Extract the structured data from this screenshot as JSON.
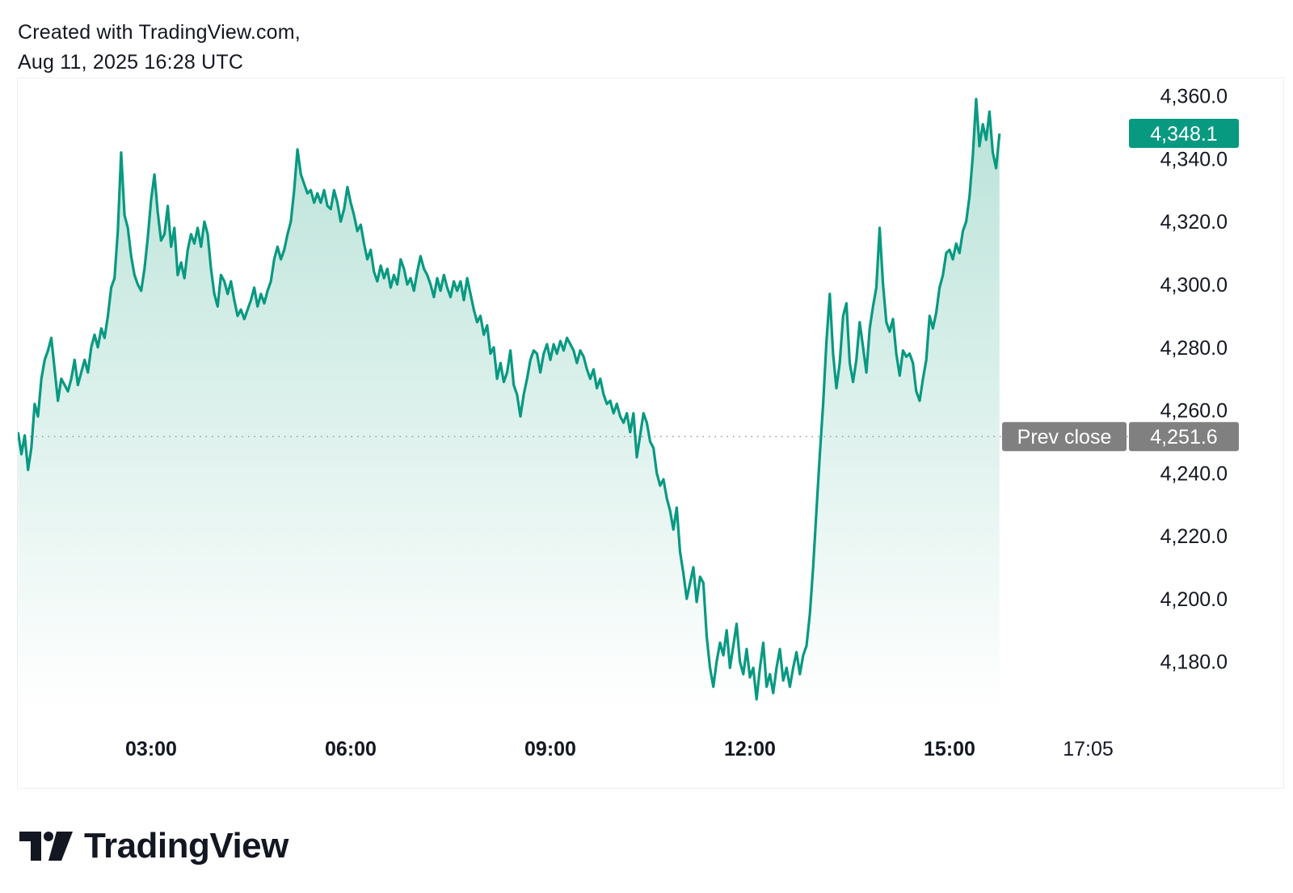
{
  "header": {
    "line1": "Created with TradingView.com,",
    "line2": "Aug 11, 2025 16:28 UTC"
  },
  "footer": {
    "brand": "TradingView"
  },
  "colors": {
    "line": "#089981",
    "area_top": "#b9e2d8",
    "area_bottom": "#ffffff",
    "prev_close_label": "#808080",
    "last_price_label": "#089981",
    "dotted_line": "#9598a1"
  },
  "chart_data": {
    "type": "area",
    "title": "",
    "xlabel": "",
    "ylabel": "",
    "ylim": [
      4165,
      4363
    ],
    "y_ticks": [
      4360,
      4340,
      4320,
      4300,
      4280,
      4260,
      4240,
      4220,
      4200,
      4180
    ],
    "y_tick_labels": [
      "4,360.0",
      "4,340.0",
      "4,320.0",
      "4,300.0",
      "4,280.0",
      "4,260.0",
      "4,240.0",
      "4,220.0",
      "4,200.0",
      "4,180.0"
    ],
    "x_ticks": [
      {
        "label": "03:00",
        "bold": true,
        "hour": 3.0
      },
      {
        "label": "06:00",
        "bold": true,
        "hour": 6.0
      },
      {
        "label": "09:00",
        "bold": true,
        "hour": 9.0
      },
      {
        "label": "12:00",
        "bold": true,
        "hour": 12.0
      },
      {
        "label": "15:00",
        "bold": true,
        "hour": 15.0
      },
      {
        "label": "17:05",
        "bold": false,
        "hour": 17.083
      }
    ],
    "xlim_hours": [
      1.0,
      18.2
    ],
    "prev_close": {
      "label": "Prev close",
      "value": 4251.6,
      "value_label": "4,251.6"
    },
    "last_price": {
      "value": 4348.1,
      "value_label": "4,348.1"
    },
    "series": [
      {
        "points": [
          [
            1.0,
            4253
          ],
          [
            1.05,
            4246
          ],
          [
            1.1,
            4252
          ],
          [
            1.15,
            4241
          ],
          [
            1.2,
            4248
          ],
          [
            1.25,
            4262
          ],
          [
            1.3,
            4258
          ],
          [
            1.35,
            4270
          ],
          [
            1.4,
            4276
          ],
          [
            1.45,
            4279
          ],
          [
            1.5,
            4283
          ],
          [
            1.55,
            4273
          ],
          [
            1.6,
            4263
          ],
          [
            1.65,
            4270
          ],
          [
            1.7,
            4268
          ],
          [
            1.75,
            4266
          ],
          [
            1.8,
            4270
          ],
          [
            1.85,
            4276
          ],
          [
            1.9,
            4268
          ],
          [
            1.95,
            4272
          ],
          [
            2.0,
            4276
          ],
          [
            2.05,
            4272
          ],
          [
            2.1,
            4280
          ],
          [
            2.15,
            4284
          ],
          [
            2.2,
            4280
          ],
          [
            2.25,
            4286
          ],
          [
            2.3,
            4283
          ],
          [
            2.35,
            4290
          ],
          [
            2.4,
            4299
          ],
          [
            2.45,
            4302
          ],
          [
            2.5,
            4317
          ],
          [
            2.55,
            4342
          ],
          [
            2.6,
            4322
          ],
          [
            2.65,
            4318
          ],
          [
            2.7,
            4309
          ],
          [
            2.75,
            4303
          ],
          [
            2.8,
            4300
          ],
          [
            2.85,
            4298
          ],
          [
            2.9,
            4305
          ],
          [
            2.95,
            4315
          ],
          [
            3.0,
            4327
          ],
          [
            3.05,
            4335
          ],
          [
            3.1,
            4323
          ],
          [
            3.15,
            4314
          ],
          [
            3.2,
            4316
          ],
          [
            3.25,
            4325
          ],
          [
            3.3,
            4312
          ],
          [
            3.35,
            4318
          ],
          [
            3.4,
            4303
          ],
          [
            3.45,
            4307
          ],
          [
            3.5,
            4302
          ],
          [
            3.55,
            4311
          ],
          [
            3.6,
            4316
          ],
          [
            3.65,
            4313
          ],
          [
            3.7,
            4318
          ],
          [
            3.75,
            4312
          ],
          [
            3.8,
            4320
          ],
          [
            3.85,
            4316
          ],
          [
            3.9,
            4305
          ],
          [
            3.95,
            4297
          ],
          [
            4.0,
            4293
          ],
          [
            4.05,
            4303
          ],
          [
            4.1,
            4301
          ],
          [
            4.15,
            4297
          ],
          [
            4.2,
            4301
          ],
          [
            4.25,
            4295
          ],
          [
            4.3,
            4290
          ],
          [
            4.35,
            4292
          ],
          [
            4.4,
            4289
          ],
          [
            4.5,
            4295
          ],
          [
            4.55,
            4299
          ],
          [
            4.6,
            4293
          ],
          [
            4.65,
            4297
          ],
          [
            4.7,
            4294
          ],
          [
            4.75,
            4298
          ],
          [
            4.8,
            4301
          ],
          [
            4.85,
            4308
          ],
          [
            4.9,
            4312
          ],
          [
            4.95,
            4308
          ],
          [
            5.0,
            4311
          ],
          [
            5.05,
            4316
          ],
          [
            5.1,
            4320
          ],
          [
            5.15,
            4330
          ],
          [
            5.2,
            4343
          ],
          [
            5.25,
            4335
          ],
          [
            5.3,
            4332
          ],
          [
            5.35,
            4329
          ],
          [
            5.4,
            4330
          ],
          [
            5.45,
            4326
          ],
          [
            5.5,
            4329
          ],
          [
            5.55,
            4326
          ],
          [
            5.6,
            4330
          ],
          [
            5.65,
            4325
          ],
          [
            5.7,
            4324
          ],
          [
            5.75,
            4330
          ],
          [
            5.8,
            4326
          ],
          [
            5.85,
            4320
          ],
          [
            5.9,
            4324
          ],
          [
            5.95,
            4331
          ],
          [
            6.0,
            4326
          ],
          [
            6.05,
            4322
          ],
          [
            6.1,
            4317
          ],
          [
            6.15,
            4319
          ],
          [
            6.2,
            4313
          ],
          [
            6.25,
            4308
          ],
          [
            6.3,
            4311
          ],
          [
            6.35,
            4304
          ],
          [
            6.4,
            4301
          ],
          [
            6.45,
            4306
          ],
          [
            6.5,
            4302
          ],
          [
            6.55,
            4305
          ],
          [
            6.6,
            4299
          ],
          [
            6.65,
            4303
          ],
          [
            6.7,
            4300
          ],
          [
            6.75,
            4308
          ],
          [
            6.8,
            4305
          ],
          [
            6.85,
            4300
          ],
          [
            6.9,
            4302
          ],
          [
            6.95,
            4298
          ],
          [
            7.0,
            4304
          ],
          [
            7.05,
            4309
          ],
          [
            7.1,
            4305
          ],
          [
            7.15,
            4303
          ],
          [
            7.2,
            4300
          ],
          [
            7.25,
            4296
          ],
          [
            7.3,
            4302
          ],
          [
            7.35,
            4298
          ],
          [
            7.4,
            4303
          ],
          [
            7.45,
            4299
          ],
          [
            7.5,
            4296
          ],
          [
            7.55,
            4301
          ],
          [
            7.6,
            4298
          ],
          [
            7.65,
            4301
          ],
          [
            7.7,
            4295
          ],
          [
            7.75,
            4302
          ],
          [
            7.8,
            4297
          ],
          [
            7.85,
            4292
          ],
          [
            7.9,
            4288
          ],
          [
            7.95,
            4290
          ],
          [
            8.0,
            4284
          ],
          [
            8.05,
            4287
          ],
          [
            8.1,
            4278
          ],
          [
            8.15,
            4280
          ],
          [
            8.2,
            4270
          ],
          [
            8.25,
            4275
          ],
          [
            8.3,
            4269
          ],
          [
            8.35,
            4272
          ],
          [
            8.4,
            4279
          ],
          [
            8.45,
            4268
          ],
          [
            8.5,
            4265
          ],
          [
            8.55,
            4258
          ],
          [
            8.6,
            4265
          ],
          [
            8.65,
            4270
          ],
          [
            8.7,
            4276
          ],
          [
            8.75,
            4279
          ],
          [
            8.8,
            4278
          ],
          [
            8.85,
            4272
          ],
          [
            8.9,
            4278
          ],
          [
            8.95,
            4281
          ],
          [
            9.0,
            4276
          ],
          [
            9.05,
            4281
          ],
          [
            9.1,
            4278
          ],
          [
            9.15,
            4282
          ],
          [
            9.2,
            4279
          ],
          [
            9.25,
            4283
          ],
          [
            9.3,
            4281
          ],
          [
            9.35,
            4279
          ],
          [
            9.4,
            4275
          ],
          [
            9.45,
            4279
          ],
          [
            9.5,
            4277
          ],
          [
            9.55,
            4273
          ],
          [
            9.6,
            4270
          ],
          [
            9.65,
            4273
          ],
          [
            9.7,
            4267
          ],
          [
            9.75,
            4270
          ],
          [
            9.8,
            4265
          ],
          [
            9.85,
            4262
          ],
          [
            9.9,
            4263
          ],
          [
            9.95,
            4259
          ],
          [
            10.0,
            4262
          ],
          [
            10.05,
            4258
          ],
          [
            10.1,
            4256
          ],
          [
            10.15,
            4259
          ],
          [
            10.2,
            4253
          ],
          [
            10.25,
            4259
          ],
          [
            10.3,
            4245
          ],
          [
            10.35,
            4252
          ],
          [
            10.4,
            4259
          ],
          [
            10.45,
            4256
          ],
          [
            10.5,
            4250
          ],
          [
            10.55,
            4248
          ],
          [
            10.6,
            4240
          ],
          [
            10.65,
            4236
          ],
          [
            10.7,
            4238
          ],
          [
            10.75,
            4232
          ],
          [
            10.8,
            4228
          ],
          [
            10.85,
            4222
          ],
          [
            10.9,
            4229
          ],
          [
            10.95,
            4215
          ],
          [
            11.0,
            4208
          ],
          [
            11.05,
            4200
          ],
          [
            11.1,
            4205
          ],
          [
            11.15,
            4210
          ],
          [
            11.2,
            4199
          ],
          [
            11.25,
            4207
          ],
          [
            11.3,
            4205
          ],
          [
            11.35,
            4188
          ],
          [
            11.4,
            4178
          ],
          [
            11.45,
            4172
          ],
          [
            11.5,
            4180
          ],
          [
            11.55,
            4186
          ],
          [
            11.6,
            4182
          ],
          [
            11.65,
            4190
          ],
          [
            11.7,
            4178
          ],
          [
            11.75,
            4185
          ],
          [
            11.8,
            4192
          ],
          [
            11.85,
            4180
          ],
          [
            11.9,
            4176
          ],
          [
            11.95,
            4184
          ],
          [
            12.0,
            4175
          ],
          [
            12.05,
            4178
          ],
          [
            12.1,
            4168
          ],
          [
            12.15,
            4178
          ],
          [
            12.2,
            4186
          ],
          [
            12.25,
            4172
          ],
          [
            12.3,
            4176
          ],
          [
            12.35,
            4170
          ],
          [
            12.4,
            4178
          ],
          [
            12.45,
            4184
          ],
          [
            12.5,
            4174
          ],
          [
            12.55,
            4178
          ],
          [
            12.6,
            4172
          ],
          [
            12.65,
            4178
          ],
          [
            12.7,
            4183
          ],
          [
            12.75,
            4176
          ],
          [
            12.8,
            4182
          ],
          [
            12.85,
            4185
          ],
          [
            12.9,
            4195
          ],
          [
            12.95,
            4210
          ],
          [
            13.0,
            4228
          ],
          [
            13.05,
            4246
          ],
          [
            13.1,
            4262
          ],
          [
            13.15,
            4282
          ],
          [
            13.2,
            4297
          ],
          [
            13.25,
            4278
          ],
          [
            13.3,
            4267
          ],
          [
            13.35,
            4275
          ],
          [
            13.4,
            4290
          ],
          [
            13.45,
            4294
          ],
          [
            13.5,
            4275
          ],
          [
            13.55,
            4269
          ],
          [
            13.6,
            4276
          ],
          [
            13.65,
            4288
          ],
          [
            13.7,
            4280
          ],
          [
            13.75,
            4272
          ],
          [
            13.8,
            4286
          ],
          [
            13.85,
            4293
          ],
          [
            13.9,
            4299
          ],
          [
            13.95,
            4318
          ],
          [
            14.0,
            4300
          ],
          [
            14.05,
            4288
          ],
          [
            14.1,
            4285
          ],
          [
            14.15,
            4289
          ],
          [
            14.2,
            4278
          ],
          [
            14.25,
            4271
          ],
          [
            14.3,
            4279
          ],
          [
            14.35,
            4277
          ],
          [
            14.4,
            4278
          ],
          [
            14.45,
            4275
          ],
          [
            14.5,
            4266
          ],
          [
            14.55,
            4263
          ],
          [
            14.6,
            4270
          ],
          [
            14.65,
            4276
          ],
          [
            14.7,
            4290
          ],
          [
            14.75,
            4286
          ],
          [
            14.8,
            4291
          ],
          [
            14.85,
            4299
          ],
          [
            14.9,
            4303
          ],
          [
            14.95,
            4310
          ],
          [
            15.0,
            4311
          ],
          [
            15.05,
            4308
          ],
          [
            15.1,
            4313
          ],
          [
            15.15,
            4310
          ],
          [
            15.2,
            4317
          ],
          [
            15.25,
            4320
          ],
          [
            15.3,
            4328
          ],
          [
            15.35,
            4341
          ],
          [
            15.4,
            4359
          ],
          [
            15.45,
            4344
          ],
          [
            15.5,
            4351
          ],
          [
            15.55,
            4346
          ],
          [
            15.6,
            4355
          ],
          [
            15.65,
            4342
          ],
          [
            15.7,
            4337
          ],
          [
            15.75,
            4348
          ]
        ]
      }
    ]
  }
}
